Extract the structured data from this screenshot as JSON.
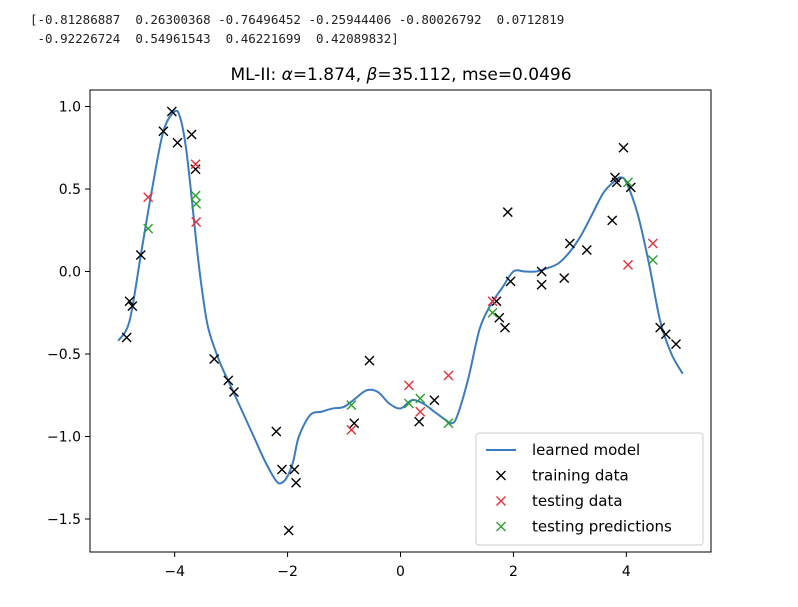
{
  "output": {
    "array_line1": "[-0.81286887  0.26300368 -0.76496452 -0.25944406 -0.80026792  0.0712819",
    "array_line2": " -0.92226724  0.54961543  0.46221699  0.42089832]"
  },
  "colors": {
    "model": "#3b7bbf",
    "training": "#000000",
    "testing": "#e8303c",
    "predictions": "#2ca02c"
  },
  "chart_data": {
    "type": "scatter",
    "title": "ML-II: α=1.874, β=35.112, mse=0.0496",
    "title_parts": {
      "prefix": "ML-II: ",
      "alpha_symbol": "α",
      "alpha_value": "=1.874, ",
      "beta_symbol": "β",
      "beta_value": "=35.112, mse=0.0496"
    },
    "xlim": [
      -5.5,
      5.5
    ],
    "ylim": [
      -1.7,
      1.1
    ],
    "x_ticks": [
      -4,
      -2,
      0,
      2,
      4
    ],
    "x_tick_labels": [
      "−4",
      "−2",
      "0",
      "2",
      "4"
    ],
    "y_ticks": [
      1.0,
      0.5,
      0.0,
      -0.5,
      -1.0,
      -1.5
    ],
    "y_tick_labels": [
      "1.0",
      "0.5",
      "0.0",
      "−0.5",
      "−1.0",
      "−1.5"
    ],
    "legend_position": "lower-right",
    "series": [
      {
        "name": "learned model",
        "kind": "line",
        "x": [
          -5.0,
          -4.8,
          -4.6,
          -4.4,
          -4.2,
          -4.0,
          -3.9,
          -3.8,
          -3.7,
          -3.6,
          -3.5,
          -3.4,
          -3.2,
          -3.0,
          -2.8,
          -2.6,
          -2.4,
          -2.2,
          -2.1,
          -2.0,
          -1.9,
          -1.8,
          -1.6,
          -1.4,
          -1.2,
          -1.0,
          -0.8,
          -0.6,
          -0.4,
          -0.2,
          0.0,
          0.2,
          0.4,
          0.6,
          0.8,
          0.9,
          1.0,
          1.2,
          1.4,
          1.6,
          1.8,
          2.0,
          2.2,
          2.4,
          2.6,
          2.8,
          3.0,
          3.2,
          3.4,
          3.6,
          3.8,
          3.9,
          4.0,
          4.2,
          4.4,
          4.6,
          4.8,
          5.0
        ],
        "y": [
          -0.42,
          -0.3,
          0.1,
          0.5,
          0.85,
          0.97,
          0.93,
          0.75,
          0.45,
          0.12,
          -0.15,
          -0.35,
          -0.55,
          -0.7,
          -0.85,
          -1.0,
          -1.15,
          -1.27,
          -1.28,
          -1.24,
          -1.15,
          -1.0,
          -0.87,
          -0.85,
          -0.83,
          -0.82,
          -0.77,
          -0.72,
          -0.73,
          -0.8,
          -0.83,
          -0.78,
          -0.8,
          -0.85,
          -0.9,
          -0.92,
          -0.88,
          -0.65,
          -0.35,
          -0.2,
          -0.1,
          0.0,
          0.0,
          0.0,
          0.02,
          0.05,
          0.12,
          0.22,
          0.35,
          0.48,
          0.55,
          0.57,
          0.54,
          0.35,
          0.05,
          -0.3,
          -0.5,
          -0.62
        ]
      },
      {
        "name": "training data",
        "kind": "marker",
        "x": [
          -4.85,
          -4.8,
          -4.75,
          -4.6,
          -4.2,
          -4.05,
          -3.95,
          -3.7,
          -3.63,
          -3.3,
          -3.05,
          -2.95,
          -2.2,
          -2.1,
          -1.98,
          -1.88,
          -1.85,
          -0.82,
          -0.55,
          0.33,
          0.6,
          1.7,
          1.75,
          1.85,
          1.9,
          1.95,
          2.5,
          2.5,
          2.9,
          3.0,
          3.3,
          3.75,
          3.8,
          3.83,
          3.95,
          4.08,
          4.6,
          4.7,
          4.88
        ],
        "y": [
          -0.4,
          -0.18,
          -0.21,
          0.1,
          0.85,
          0.97,
          0.78,
          0.83,
          0.62,
          -0.53,
          -0.66,
          -0.73,
          -0.97,
          -1.2,
          -1.57,
          -1.2,
          -1.28,
          -0.92,
          -0.54,
          -0.91,
          -0.78,
          -0.18,
          -0.28,
          -0.34,
          0.36,
          -0.06,
          0.0,
          -0.08,
          -0.04,
          0.17,
          0.13,
          0.31,
          0.57,
          0.54,
          0.75,
          0.51,
          -0.34,
          -0.38,
          -0.44
        ]
      },
      {
        "name": "testing data",
        "kind": "marker",
        "x": [
          -4.47,
          -3.63,
          -3.62,
          -0.87,
          0.15,
          0.35,
          0.85,
          1.63,
          4.47,
          4.03
        ],
        "y": [
          0.45,
          0.65,
          0.3,
          -0.96,
          -0.69,
          -0.85,
          -0.63,
          -0.18,
          0.17,
          0.04
        ]
      },
      {
        "name": "testing predictions",
        "kind": "marker",
        "x": [
          -4.47,
          -3.63,
          -3.62,
          -0.87,
          0.15,
          0.35,
          0.85,
          1.63,
          4.47,
          4.03
        ],
        "y": [
          0.26,
          0.46,
          0.41,
          -0.81,
          -0.8,
          -0.77,
          -0.92,
          -0.25,
          0.07,
          0.54
        ]
      }
    ]
  }
}
